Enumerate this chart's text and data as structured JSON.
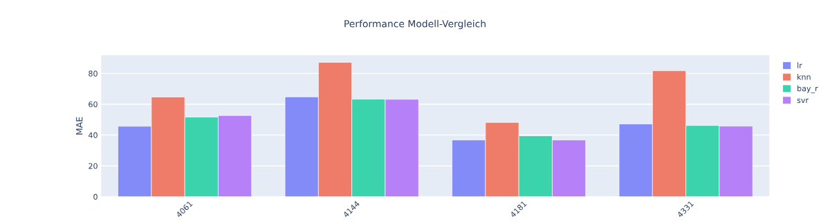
{
  "chart_data": {
    "type": "bar",
    "title": "Performance Modell-Vergleich",
    "ylabel": "MAE",
    "categories": [
      "4061",
      "4144",
      "4181",
      "4331"
    ],
    "series": [
      {
        "name": "lr",
        "color": "#828bf8",
        "values": [
          45.7,
          64.8,
          36.8,
          47.2
        ]
      },
      {
        "name": "knn",
        "color": "#ef7b69",
        "values": [
          64.7,
          87.2,
          48.2,
          81.8
        ]
      },
      {
        "name": "bay_r",
        "color": "#3ad3ac",
        "values": [
          51.7,
          63.3,
          39.5,
          46.2
        ]
      },
      {
        "name": "svr",
        "color": "#b681f8",
        "values": [
          52.7,
          63.2,
          36.8,
          45.8
        ]
      }
    ],
    "ylim": [
      0,
      91.8
    ],
    "yticks": [
      0,
      20,
      40,
      60,
      80
    ],
    "grid": "y",
    "legend": "top right"
  }
}
